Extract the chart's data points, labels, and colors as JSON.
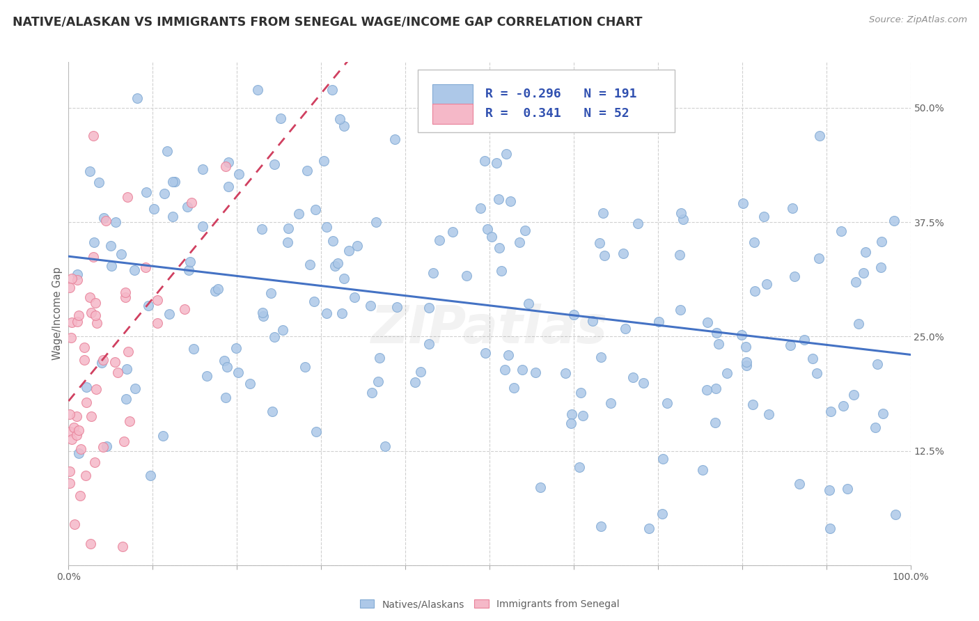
{
  "title": "NATIVE/ALASKAN VS IMMIGRANTS FROM SENEGAL WAGE/INCOME GAP CORRELATION CHART",
  "source_text": "Source: ZipAtlas.com",
  "ylabel": "Wage/Income Gap",
  "xlim": [
    0,
    1.0
  ],
  "ylim": [
    0.0,
    0.55
  ],
  "yticks": [
    0.0,
    0.125,
    0.25,
    0.375,
    0.5
  ],
  "ytick_labels": [
    "",
    "12.5%",
    "25.0%",
    "37.5%",
    "50.0%"
  ],
  "blue_R": -0.296,
  "blue_N": 191,
  "pink_R": 0.341,
  "pink_N": 52,
  "blue_color": "#adc8e8",
  "blue_edge": "#82aad4",
  "pink_color": "#f5b8c8",
  "pink_edge": "#e88098",
  "blue_line_color": "#4472c4",
  "pink_line_color": "#d04060",
  "legend_blue_face": "#adc8e8",
  "legend_pink_face": "#f5b8c8",
  "watermark": "ZIPatlas",
  "background_color": "#ffffff",
  "grid_color": "#d0d0d0",
  "title_color": "#303030",
  "axis_label_color": "#606060",
  "source_color": "#909090",
  "legend_text_color": "#3050b0"
}
